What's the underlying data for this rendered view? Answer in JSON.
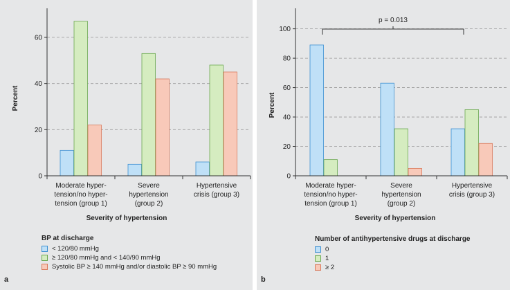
{
  "chart_data": [
    {
      "type": "bar",
      "panel_label": "a",
      "categories": [
        [
          "Moderate hyper-",
          "tension/no hyper-",
          "tension (group 1)"
        ],
        [
          "Severe",
          "hypertension",
          "(group 2)"
        ],
        [
          "Hypertensive",
          "crisis (group 3)"
        ]
      ],
      "series": [
        {
          "name": "< 120/80 mmHg",
          "color": "#bfe0f7",
          "stroke": "#3d8fd1",
          "values": [
            11,
            5,
            6
          ]
        },
        {
          "name": "≥ 120/80 mmHg and < 140/90 mmHg",
          "color": "#d5ecc0",
          "stroke": "#6aa84f",
          "values": [
            67,
            53,
            48
          ]
        },
        {
          "name": "Systolic BP ≥ 140 mmHg and/or diastolic BP ≥ 90 mmHg",
          "color": "#f8c9b9",
          "stroke": "#d9785a",
          "values": [
            22,
            42,
            45
          ]
        }
      ],
      "ylim": [
        0,
        72
      ],
      "yticks": [
        0,
        20,
        40,
        60
      ],
      "ylabel": "Percent",
      "xlabel": "Severity of hypertension",
      "legend_title": "BP at discharge"
    },
    {
      "type": "bar",
      "panel_label": "b",
      "categories": [
        [
          "Moderate hyper-",
          "tension/no hyper-",
          "tension (group 1)"
        ],
        [
          "Severe",
          "hypertension",
          "(group 2)"
        ],
        [
          "Hypertensive",
          "crisis (group 3)"
        ]
      ],
      "series": [
        {
          "name": "0",
          "color": "#bfe0f7",
          "stroke": "#3d8fd1",
          "values": [
            89,
            63,
            32
          ]
        },
        {
          "name": "1",
          "color": "#d5ecc0",
          "stroke": "#6aa84f",
          "values": [
            11,
            32,
            45
          ]
        },
        {
          "name": "≥ 2",
          "color": "#f8c9b9",
          "stroke": "#d9785a",
          "values": [
            0,
            5,
            22
          ]
        }
      ],
      "ylim": [
        0,
        113
      ],
      "yticks": [
        0,
        20,
        40,
        60,
        80,
        100
      ],
      "ylabel": "Percent",
      "xlabel": "Severity of hypertension",
      "legend_title": "Number of antihypertensive drugs at discharge",
      "annotation": "p = 0.013"
    }
  ]
}
